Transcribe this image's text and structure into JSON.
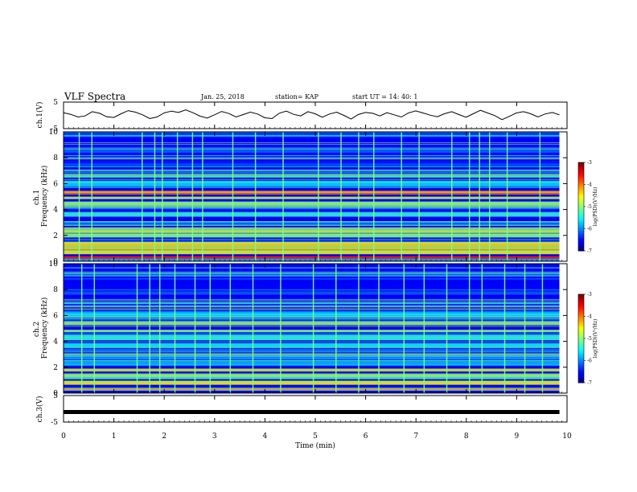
{
  "header": {
    "title": "VLF Spectra",
    "date": "Jan. 25, 2018",
    "station": "station= KAP",
    "start": "start  UT =   14: 40: 1"
  },
  "chart_data": [
    {
      "type": "line",
      "name": "ch1-waveform",
      "ylabel": "ch.1(V)",
      "ylim": [
        -5,
        5
      ],
      "y_ticks": [
        "5",
        "-5"
      ],
      "x_range_min": [
        0,
        10
      ],
      "x_ticks": [
        "0",
        "1",
        "2",
        "3",
        "4",
        "5",
        "6",
        "7",
        "8",
        "9",
        "10"
      ],
      "x_data_end": 9.85,
      "y": [
        1.0,
        0.4,
        -0.6,
        -0.2,
        1.4,
        0.8,
        -0.5,
        -0.8,
        0.6,
        1.8,
        1.2,
        0.2,
        -1.2,
        -0.6,
        0.9,
        1.6,
        1.1,
        2.1,
        1.0,
        -0.3,
        -1.0,
        0.2,
        1.5,
        0.7,
        -0.6,
        0.3,
        1.2,
        0.5,
        -0.9,
        -1.2,
        0.8,
        1.6,
        0.4,
        -0.2,
        1.4,
        0.6,
        -0.7,
        0.5,
        1.2,
        0.0,
        -1.4,
        0.3,
        1.1,
        0.8,
        -0.2,
        1.0,
        0.2,
        -0.6,
        0.9,
        1.7,
        0.9,
        0.1,
        -0.5,
        0.6,
        1.4,
        0.3,
        -0.7,
        0.6,
        1.9,
        0.9,
        -0.1,
        -1.6,
        -0.4,
        0.9,
        1.4,
        0.6,
        -0.6,
        0.5,
        1.1,
        0.2
      ],
      "style": "black trace, dense noise"
    },
    {
      "type": "heatmap",
      "name": "ch1-spectrogram",
      "ylabel": "ch.1\nFrequency (kHz)",
      "ylim": [
        0,
        10
      ],
      "y_ticks": [
        "0",
        "2",
        "4",
        "6",
        "8",
        "10"
      ],
      "x_range_min": [
        0,
        10
      ],
      "x_data_end": 9.85,
      "colorbar": {
        "label": "log(PSD)(V²/Hz)",
        "range": [
          -7,
          -3
        ],
        "ticks": [
          "-3",
          "-4",
          "-5",
          "-6",
          "-7"
        ]
      },
      "bands_khz": [
        {
          "f": 0.3,
          "level": -3.6
        },
        {
          "f": 0.7,
          "level": -4.5
        },
        {
          "f": 1.1,
          "level": -4.4
        },
        {
          "f": 1.4,
          "level": -4.6
        },
        {
          "f": 2.0,
          "level": -4.9
        },
        {
          "f": 2.4,
          "level": -4.8
        },
        {
          "f": 3.0,
          "level": -5.8
        },
        {
          "f": 3.6,
          "level": -5.3
        },
        {
          "f": 4.4,
          "level": -4.9
        },
        {
          "f": 4.9,
          "level": -4.8
        },
        {
          "f": 5.3,
          "level": -3.9
        },
        {
          "f": 6.0,
          "level": -5.6
        },
        {
          "f": 6.6,
          "level": -4.8
        },
        {
          "f": 7.6,
          "level": -6.4
        },
        {
          "f": 8.6,
          "level": -6.1
        },
        {
          "f": 9.7,
          "level": -5.9
        }
      ],
      "vertical_lines_min": [
        0.3,
        0.55,
        1.55,
        1.8,
        1.95,
        2.25,
        2.55,
        2.75,
        3.35,
        3.8,
        4.35,
        5.05,
        5.5,
        5.85,
        6.15,
        6.7,
        7.05,
        7.7,
        8.05,
        8.25,
        8.45,
        8.8,
        9.45
      ]
    },
    {
      "type": "heatmap",
      "name": "ch2-spectrogram",
      "ylabel": "ch.2\nFrequency (kHz)",
      "ylim": [
        0,
        10
      ],
      "y_ticks": [
        "0",
        "2",
        "4",
        "6",
        "8",
        "10"
      ],
      "x_range_min": [
        0,
        10
      ],
      "x_data_end": 9.85,
      "colorbar": {
        "label": "log(PSD)(V²/Hz)",
        "range": [
          -7,
          -3
        ],
        "ticks": [
          "-3",
          "-4",
          "-5",
          "-6",
          "-7"
        ]
      },
      "bands_khz": [
        {
          "f": 0.3,
          "level": -4.2
        },
        {
          "f": 0.8,
          "level": -4.5
        },
        {
          "f": 1.3,
          "level": -4.9
        },
        {
          "f": 1.8,
          "level": -4.6
        },
        {
          "f": 2.3,
          "level": -5.8
        },
        {
          "f": 2.8,
          "level": -5.9
        },
        {
          "f": 3.3,
          "level": -6.0
        },
        {
          "f": 3.7,
          "level": -5.5
        },
        {
          "f": 4.3,
          "level": -5.3
        },
        {
          "f": 4.8,
          "level": -4.8
        },
        {
          "f": 5.4,
          "level": -4.9
        },
        {
          "f": 6.1,
          "level": -5.7
        },
        {
          "f": 7.0,
          "level": -6.2
        },
        {
          "f": 8.2,
          "level": -6.5
        },
        {
          "f": 9.2,
          "level": -6.1
        }
      ],
      "vertical_lines_min": [
        0.35,
        0.6,
        1.45,
        1.7,
        1.9,
        2.2,
        2.6,
        2.9,
        3.3,
        3.75,
        4.3,
        4.95,
        5.4,
        5.85,
        6.25,
        6.75,
        7.15,
        7.6,
        8.05,
        8.3,
        8.75,
        9.15,
        9.5
      ]
    },
    {
      "type": "line",
      "name": "ch3-waveform",
      "ylabel": "ch.3(V)",
      "xlabel": "Time (min)",
      "ylim": [
        -5,
        5
      ],
      "y_ticks": [
        "5",
        "-5"
      ],
      "x_range_min": [
        0,
        10
      ],
      "x_ticks": [
        "0",
        "1",
        "2",
        "3",
        "4",
        "5",
        "6",
        "7",
        "8",
        "9",
        "10"
      ],
      "x_data_end": 9.85,
      "y_constant": -1.2,
      "style": "thick black flat line"
    }
  ]
}
